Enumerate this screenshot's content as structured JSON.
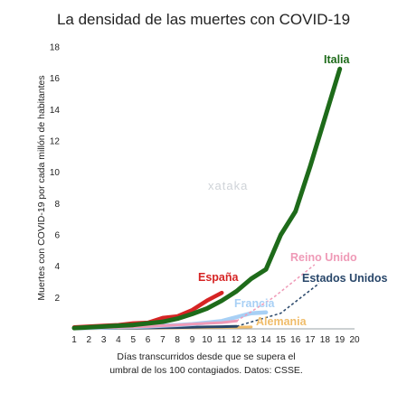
{
  "chart_data": {
    "type": "line",
    "title": "La densidad de las muertes con COVID-19",
    "ylabel": "Muertes con COVID-19 por cada millón de habitantes",
    "xlabel_lines": [
      "Días transcurridos desde que se supera el",
      "umbral de los 100 contagiados. Datos: CSSE."
    ],
    "xlim": [
      1,
      20
    ],
    "ylim": [
      0,
      18
    ],
    "x_ticks": [
      1,
      2,
      3,
      4,
      5,
      6,
      7,
      8,
      9,
      10,
      11,
      12,
      13,
      14,
      15,
      16,
      17,
      18,
      19,
      20
    ],
    "y_ticks": [
      2,
      4,
      6,
      8,
      10,
      12,
      14,
      16,
      18
    ],
    "grid": false,
    "watermark": "xataka",
    "series": [
      {
        "name": "Alemania",
        "color": "#f0bd6b",
        "x": [
          1,
          2,
          3,
          4,
          5,
          6,
          7,
          8,
          9,
          10,
          11,
          12,
          13
        ],
        "y": [
          0.02,
          0.02,
          0.03,
          0.03,
          0.04,
          0.05,
          0.05,
          0.06,
          0.07,
          0.08,
          0.09,
          0.1,
          0.12
        ]
      },
      {
        "name": "Estados Unidos",
        "color": "#29476a",
        "dashed_projection": true,
        "x": [
          1,
          2,
          3,
          4,
          5,
          6,
          7,
          8,
          9,
          10,
          11,
          12
        ],
        "y": [
          0.02,
          0.03,
          0.03,
          0.04,
          0.05,
          0.06,
          0.07,
          0.08,
          0.1,
          0.12,
          0.14,
          0.16
        ],
        "projection_x": [
          12,
          15,
          17.6
        ],
        "projection_y": [
          0.16,
          1.0,
          2.9
        ]
      },
      {
        "name": "Francia",
        "color": "#a8d0f5",
        "x": [
          1,
          2,
          3,
          4,
          5,
          6,
          7,
          8,
          9,
          10,
          11,
          12,
          13,
          14
        ],
        "y": [
          0.05,
          0.06,
          0.08,
          0.1,
          0.12,
          0.15,
          0.2,
          0.25,
          0.3,
          0.4,
          0.5,
          0.75,
          1.0,
          1.05
        ]
      },
      {
        "name": "Reino Unido",
        "color": "#ef9ab7",
        "dashed_projection": true,
        "x": [
          1,
          2,
          3,
          4,
          5,
          6,
          7,
          8,
          9,
          10,
          11,
          12
        ],
        "y": [
          0.05,
          0.06,
          0.08,
          0.1,
          0.12,
          0.15,
          0.2,
          0.25,
          0.3,
          0.35,
          0.4,
          0.5
        ],
        "projection_x": [
          12,
          14.5,
          17.3
        ],
        "projection_y": [
          0.5,
          2.0,
          4.1
        ]
      },
      {
        "name": "España",
        "color": "#d62424",
        "x": [
          1,
          2,
          3,
          4,
          5,
          6,
          7,
          8,
          9,
          10,
          11
        ],
        "y": [
          0.1,
          0.15,
          0.2,
          0.25,
          0.35,
          0.4,
          0.7,
          0.8,
          1.2,
          1.8,
          2.3
        ]
      },
      {
        "name": "Italia",
        "color": "#1e6b1a",
        "x": [
          1,
          2,
          3,
          4,
          5,
          6,
          7,
          8,
          9,
          10,
          11,
          12,
          13,
          14,
          15,
          16,
          17,
          18,
          19
        ],
        "y": [
          0.05,
          0.1,
          0.15,
          0.2,
          0.25,
          0.35,
          0.45,
          0.65,
          0.95,
          1.3,
          1.8,
          2.4,
          3.2,
          3.8,
          6.0,
          7.5,
          10.4,
          13.5,
          16.6
        ]
      }
    ]
  }
}
